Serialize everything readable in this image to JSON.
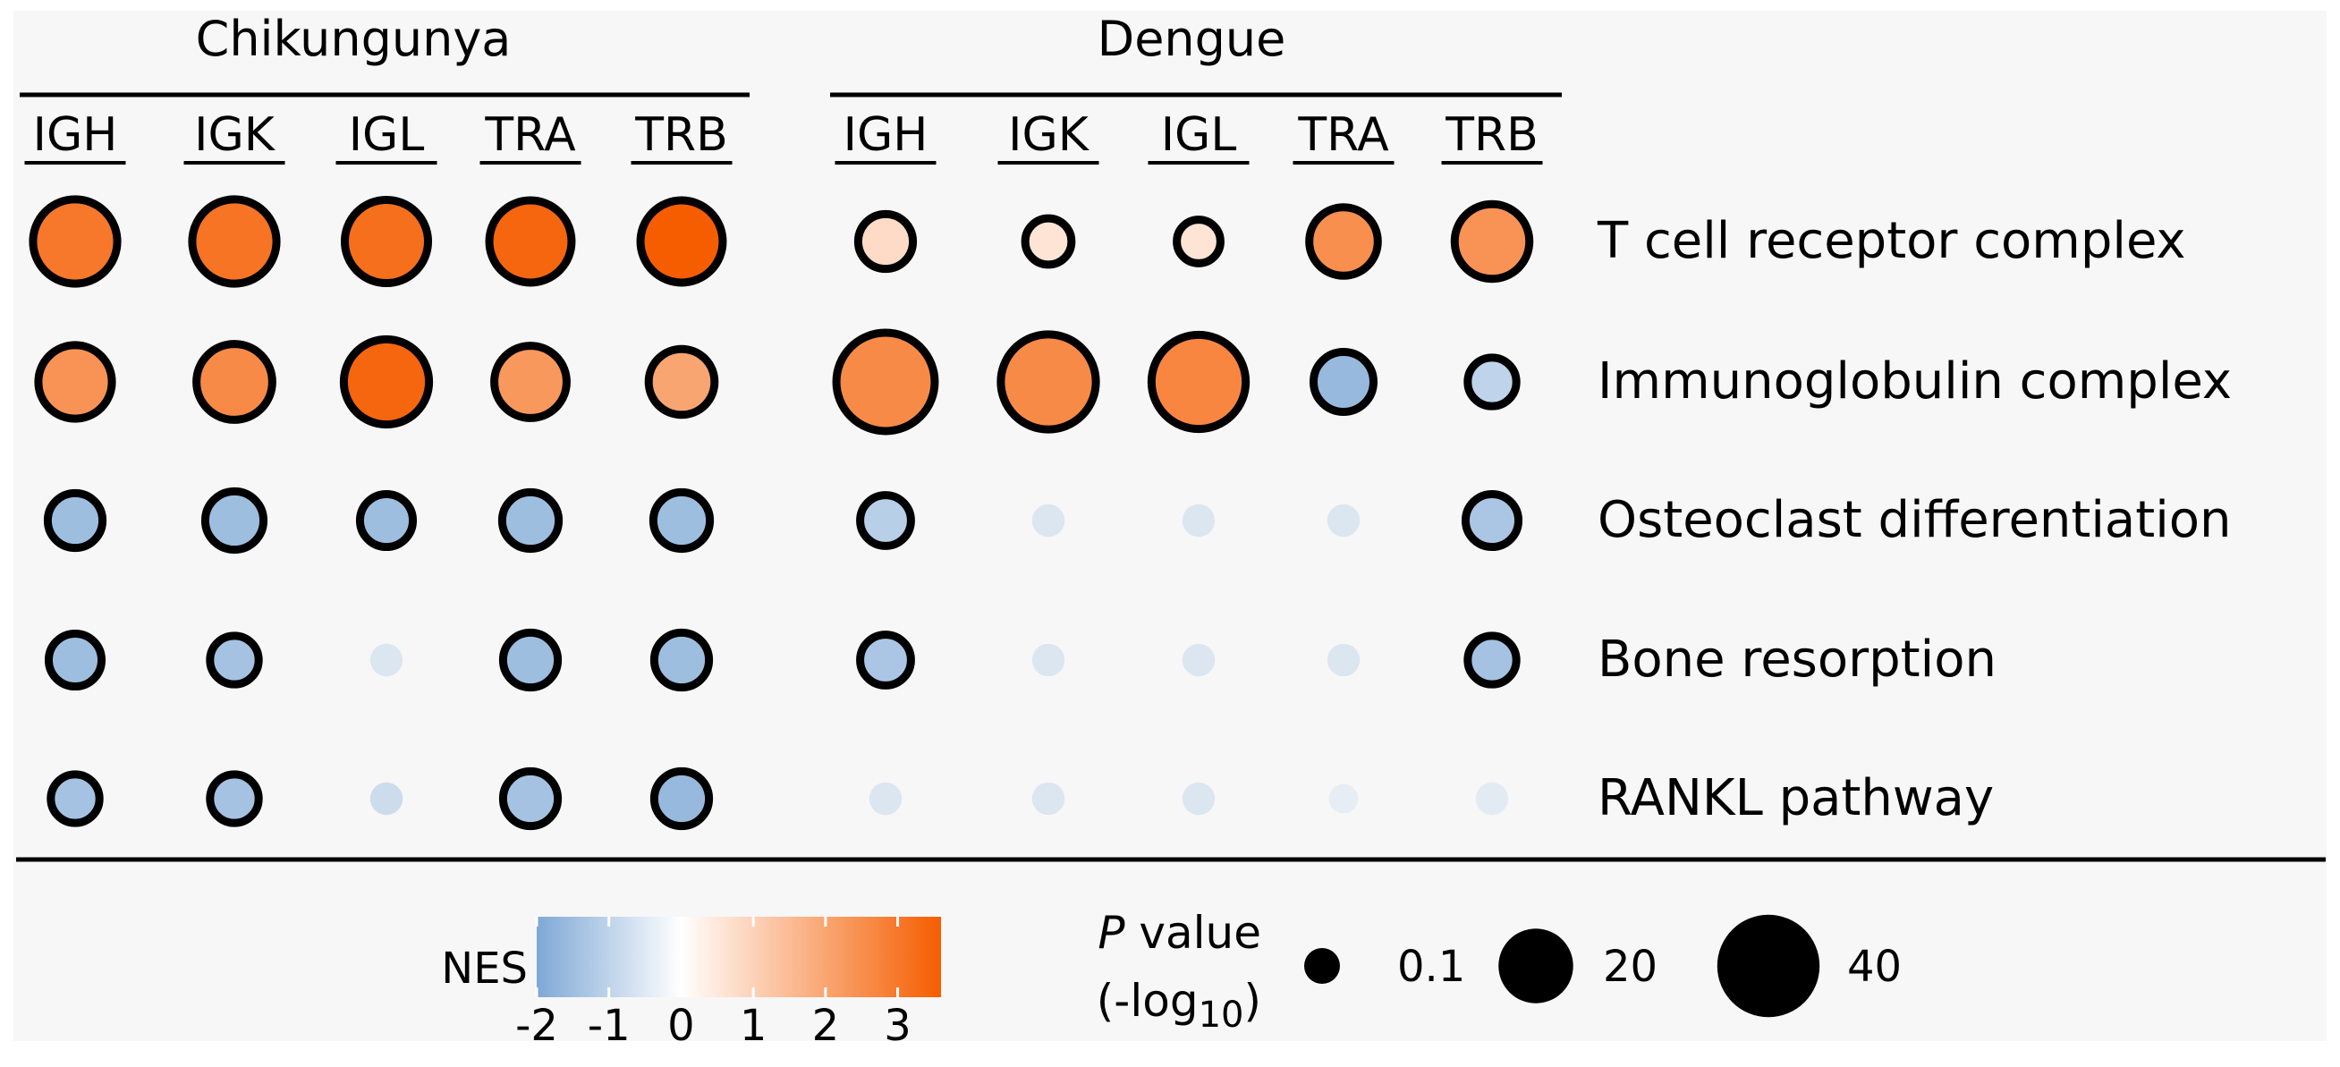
{
  "chart_data": {
    "type": "dot-matrix",
    "title": "",
    "groups": [
      {
        "name": "Chikungunya",
        "columns": [
          "IGH",
          "IGK",
          "IGL",
          "TRA",
          "TRB"
        ]
      },
      {
        "name": "Dengue",
        "columns": [
          "IGH",
          "IGK",
          "IGL",
          "TRA",
          "TRB"
        ]
      }
    ],
    "rows": [
      "T cell receptor complex",
      "Immunoglobulin complex",
      "Osteoclast differentiation",
      "Bone resorption",
      "RANKL pathway"
    ],
    "nes": [
      [
        3.0,
        3.1,
        3.2,
        3.4,
        3.6,
        0.8,
        0.6,
        0.6,
        2.5,
        2.4
      ],
      [
        2.4,
        2.6,
        3.4,
        2.3,
        2.0,
        2.6,
        2.6,
        2.7,
        -1.6,
        -1.0
      ],
      [
        -1.5,
        -1.5,
        -1.5,
        -1.5,
        -1.5,
        -1.1,
        -0.9,
        -0.9,
        -0.9,
        -1.3
      ],
      [
        -1.5,
        -1.4,
        -0.9,
        -1.5,
        -1.5,
        -1.3,
        -0.9,
        -0.9,
        -0.9,
        -1.4
      ],
      [
        -1.4,
        -1.4,
        -1.3,
        -1.4,
        -1.6,
        -0.9,
        -0.9,
        -0.9,
        -0.6,
        -0.7
      ]
    ],
    "p_neglog10": [
      [
        32,
        32,
        31,
        30,
        30,
        9,
        5,
        4,
        18,
        23
      ],
      [
        22,
        24,
        33,
        21,
        16,
        48,
        44,
        43,
        12,
        6
      ],
      [
        9,
        11,
        8,
        10,
        10,
        7,
        1,
        1,
        1,
        8
      ],
      [
        8,
        6,
        1,
        9,
        9,
        7,
        1,
        1,
        1,
        6
      ],
      [
        6,
        6,
        1,
        9,
        9,
        1,
        1,
        1,
        0.5,
        1
      ]
    ],
    "significant": [
      [
        true,
        true,
        true,
        true,
        true,
        true,
        true,
        true,
        true,
        true
      ],
      [
        true,
        true,
        true,
        true,
        true,
        true,
        true,
        true,
        true,
        true
      ],
      [
        true,
        true,
        true,
        true,
        true,
        true,
        false,
        false,
        false,
        true
      ],
      [
        true,
        true,
        false,
        true,
        true,
        true,
        false,
        false,
        false,
        true
      ],
      [
        true,
        true,
        false,
        true,
        true,
        false,
        false,
        false,
        false,
        false
      ]
    ],
    "color_scale": {
      "label": "NES",
      "ticks": [
        "-2",
        "-1",
        "0",
        "1",
        "2",
        "3"
      ],
      "domain": [
        -2,
        3.6
      ],
      "low_color": "#7ea8d6",
      "mid_color": "#ffffff",
      "high_color": "#f55d00"
    },
    "size_legend": {
      "title_italic": "P",
      "title_rest": " value",
      "subtitle_prefix": "(-log",
      "subtitle_sub": "10",
      "subtitle_suffix": ")",
      "entries": [
        {
          "label": "0.1",
          "value": 0.1
        },
        {
          "label": "20",
          "value": 20
        },
        {
          "label": "40",
          "value": 40
        }
      ]
    }
  }
}
